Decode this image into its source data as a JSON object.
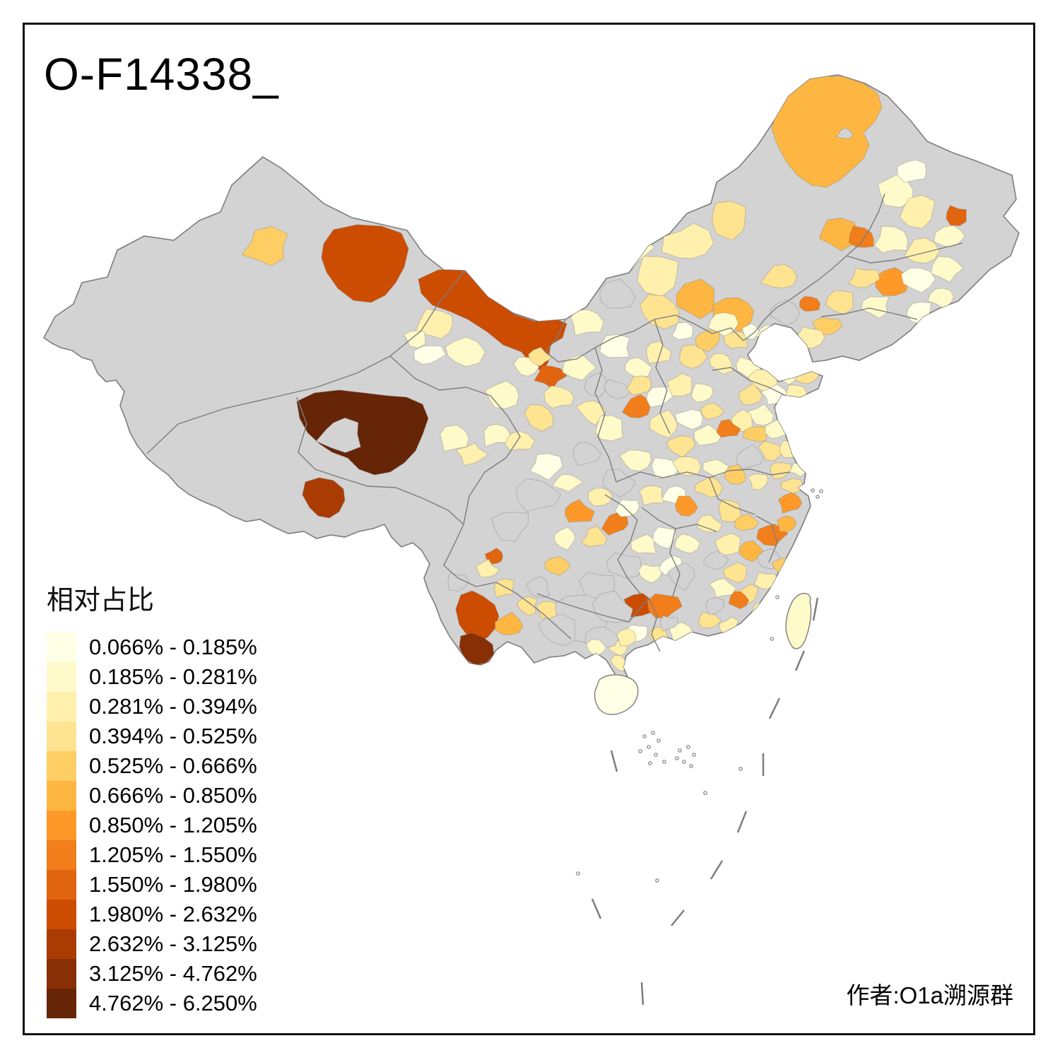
{
  "title": "O-F14338_",
  "attribution": "作者:O1a溯源群",
  "legend": {
    "title": "相对占比",
    "classes": [
      {
        "label": "0.066% - 0.185%",
        "color": "#FFFFE5"
      },
      {
        "label": "0.185% - 0.281%",
        "color": "#FFFACA"
      },
      {
        "label": "0.281% - 0.394%",
        "color": "#FFF0AE"
      },
      {
        "label": "0.394% - 0.525%",
        "color": "#FEE391"
      },
      {
        "label": "0.525% - 0.666%",
        "color": "#FECE65"
      },
      {
        "label": "0.666% - 0.850%",
        "color": "#FEB642"
      },
      {
        "label": "0.850% - 1.205%",
        "color": "#FE9929"
      },
      {
        "label": "1.205% - 1.550%",
        "color": "#F27E1B"
      },
      {
        "label": "1.550% - 1.980%",
        "color": "#E1640E"
      },
      {
        "label": "1.980% - 2.632%",
        "color": "#CC4C02"
      },
      {
        "label": "2.632% - 3.125%",
        "color": "#AA3C03"
      },
      {
        "label": "3.125% - 4.762%",
        "color": "#882F05"
      },
      {
        "label": "4.762% - 6.250%",
        "color": "#662506"
      }
    ]
  },
  "map": {
    "background": "#FFFFFF",
    "no_data_color": "#D3D3D3",
    "boundary_color": "#7D7D7D",
    "islands": {
      "taiwan_class": 2,
      "hainan_class": 1
    },
    "features": [
      {
        "pts": [
          [
            458,
            345
          ],
          [
            472,
            325
          ],
          [
            505,
            318
          ],
          [
            540,
            320
          ],
          [
            568,
            330
          ],
          [
            578,
            352
          ],
          [
            572,
            378
          ],
          [
            560,
            400
          ],
          [
            545,
            418
          ],
          [
            525,
            428
          ],
          [
            500,
            425
          ],
          [
            478,
            408
          ],
          [
            462,
            385
          ],
          [
            455,
            365
          ]
        ],
        "class": 10
      },
      {
        "pts": [
          [
            592,
            395
          ],
          [
            620,
            382
          ],
          [
            648,
            380
          ],
          [
            668,
            390
          ],
          [
            700,
            425
          ],
          [
            728,
            445
          ],
          [
            758,
            455
          ],
          [
            788,
            452
          ],
          [
            802,
            458
          ],
          [
            796,
            478
          ],
          [
            779,
            488
          ],
          [
            776,
            512
          ],
          [
            768,
            526
          ],
          [
            752,
            516
          ],
          [
            738,
            498
          ],
          [
            712,
            488
          ],
          [
            690,
            470
          ],
          [
            662,
            452
          ],
          [
            635,
            440
          ],
          [
            612,
            432
          ],
          [
            596,
            415
          ]
        ],
        "class": 10
      },
      {
        "pts": [
          [
            420,
            568
          ],
          [
            445,
            556
          ],
          [
            480,
            552
          ],
          [
            515,
            556
          ],
          [
            548,
            560
          ],
          [
            575,
            562
          ],
          [
            598,
            572
          ],
          [
            606,
            592
          ],
          [
            598,
            615
          ],
          [
            588,
            638
          ],
          [
            572,
            655
          ],
          [
            552,
            668
          ],
          [
            530,
            672
          ],
          [
            508,
            664
          ],
          [
            492,
            648
          ],
          [
            470,
            640
          ],
          [
            452,
            628
          ],
          [
            435,
            612
          ],
          [
            424,
            592
          ]
        ],
        "class": 13
      },
      {
        "pts": [
          [
            432,
            682
          ],
          [
            452,
            676
          ],
          [
            472,
            680
          ],
          [
            486,
            692
          ],
          [
            488,
            708
          ],
          [
            480,
            724
          ],
          [
            466,
            733
          ],
          [
            450,
            730
          ],
          [
            438,
            718
          ],
          [
            428,
            700
          ]
        ],
        "class": 11
      },
      {
        "pts": [
          [
            652,
            842
          ],
          [
            668,
            836
          ],
          [
            684,
            844
          ],
          [
            700,
            856
          ],
          [
            706,
            872
          ],
          [
            700,
            890
          ],
          [
            690,
            902
          ],
          [
            676,
            908
          ],
          [
            662,
            900
          ],
          [
            650,
            884
          ],
          [
            645,
            862
          ]
        ],
        "class": 10
      },
      {
        "pts": [
          [
            652,
            900
          ],
          [
            668,
            896
          ],
          [
            684,
            902
          ],
          [
            697,
            912
          ],
          [
            699,
            926
          ],
          [
            688,
            938
          ],
          [
            672,
            941
          ],
          [
            658,
            932
          ],
          [
            650,
            916
          ]
        ],
        "class": 12
      },
      {
        "pts": [
          [
            1098,
            162
          ],
          [
            1112,
            132
          ],
          [
            1135,
            115
          ],
          [
            1162,
            108
          ],
          [
            1192,
            108
          ],
          [
            1222,
            118
          ],
          [
            1242,
            132
          ],
          [
            1248,
            152
          ],
          [
            1238,
            172
          ],
          [
            1222,
            188
          ],
          [
            1230,
            205
          ],
          [
            1222,
            225
          ],
          [
            1205,
            240
          ],
          [
            1188,
            255
          ],
          [
            1170,
            265
          ],
          [
            1148,
            262
          ],
          [
            1128,
            248
          ],
          [
            1112,
            228
          ],
          [
            1100,
            205
          ],
          [
            1092,
            182
          ]
        ],
        "class": 6
      },
      [
        483,
        614,
        24,
        0
      ],
      [
        1195,
        190,
        8,
        0
      ],
      [
        378,
        350,
        24,
        5
      ],
      [
        620,
        460,
        22,
        3
      ],
      [
        655,
        498,
        20,
        2
      ],
      [
        607,
        502,
        15,
        1
      ],
      [
        712,
        560,
        18,
        2
      ],
      [
        745,
        520,
        14,
        2
      ],
      [
        588,
        478,
        12,
        2
      ],
      [
        642,
        620,
        17,
        2
      ],
      [
        668,
        643,
        15,
        3
      ],
      [
        700,
        614,
        17,
        2
      ],
      [
        762,
        590,
        18,
        4
      ],
      [
        732,
        624,
        16,
        3
      ],
      [
        778,
        532,
        16,
        9
      ],
      [
        762,
        506,
        13,
        4
      ],
      [
        792,
        562,
        15,
        3
      ],
      [
        820,
        520,
        16,
        2
      ],
      [
        845,
        545,
        15,
        0
      ],
      [
        838,
        582,
        16,
        3
      ],
      [
        862,
        606,
        16,
        2
      ],
      [
        830,
        642,
        18,
        0
      ],
      [
        870,
        492,
        17,
        1
      ],
      [
        900,
        520,
        16,
        2
      ],
      [
        872,
        552,
        14,
        0
      ],
      [
        902,
        577,
        16,
        8
      ],
      [
        905,
        545,
        13,
        4
      ],
      [
        930,
        498,
        15,
        3
      ],
      [
        880,
        350,
        30,
        2
      ],
      [
        930,
        390,
        26,
        3
      ],
      [
        975,
        345,
        26,
        3
      ],
      [
        1030,
        310,
        24,
        4
      ],
      [
        935,
        440,
        22,
        4
      ],
      [
        985,
        425,
        24,
        6
      ],
      [
        1040,
        440,
        24,
        6
      ],
      [
        1105,
        392,
        20,
        4
      ],
      [
        872,
        420,
        20,
        0
      ],
      [
        828,
        455,
        18,
        2
      ],
      [
        1022,
        458,
        15,
        2
      ],
      [
        1043,
        482,
        13,
        4
      ],
      [
        1000,
        482,
        15,
        5
      ],
      [
        1062,
        468,
        11,
        1
      ],
      [
        977,
        505,
        16,
        4
      ],
      [
        1020,
        512,
        15,
        3
      ],
      [
        1058,
        520,
        14,
        2
      ],
      [
        968,
        470,
        13,
        1
      ],
      [
        1268,
        268,
        22,
        2
      ],
      [
        1292,
        242,
        18,
        1
      ],
      [
        1300,
        300,
        20,
        3
      ],
      [
        1355,
        305,
        13,
        9
      ],
      [
        1185,
        330,
        22,
        6
      ],
      [
        1220,
        338,
        17,
        8
      ],
      [
        1262,
        340,
        18,
        2
      ],
      [
        1305,
        355,
        18,
        3
      ],
      [
        1345,
        335,
        17,
        2
      ],
      [
        1262,
        400,
        18,
        7
      ],
      [
        1222,
        395,
        16,
        4
      ],
      [
        1190,
        425,
        16,
        4
      ],
      [
        1240,
        432,
        15,
        2
      ],
      [
        1300,
        395,
        17,
        1
      ],
      [
        1340,
        380,
        16,
        2
      ],
      [
        1146,
        430,
        11,
        8
      ],
      [
        1172,
        462,
        15,
        5
      ],
      [
        1148,
        478,
        14,
        3
      ],
      [
        1130,
        498,
        12,
        4
      ],
      [
        1108,
        442,
        17,
        0
      ],
      [
        1090,
        470,
        13,
        2
      ],
      [
        1300,
        440,
        16,
        1
      ],
      [
        1332,
        420,
        14,
        2
      ],
      [
        1082,
        540,
        16,
        3
      ],
      [
        1112,
        527,
        15,
        2
      ],
      [
        1142,
        532,
        12,
        4
      ],
      [
        1062,
        560,
        14,
        4
      ],
      [
        1096,
        560,
        13,
        1
      ],
      [
        1124,
        556,
        12,
        3
      ],
      [
        1078,
        588,
        14,
        2
      ],
      [
        1110,
        584,
        12,
        4
      ],
      [
        932,
        560,
        16,
        1
      ],
      [
        962,
        545,
        14,
        3
      ],
      [
        994,
        556,
        14,
        2
      ],
      [
        942,
        600,
        16,
        3
      ],
      [
        976,
        592,
        14,
        1
      ],
      [
        1008,
        582,
        13,
        4
      ],
      [
        1000,
        616,
        14,
        2
      ],
      [
        962,
        630,
        14,
        4
      ],
      [
        1048,
        596,
        14,
        3
      ],
      [
        1070,
        614,
        13,
        5
      ],
      [
        1100,
        608,
        13,
        2
      ],
      [
        1029,
        607,
        13,
        8
      ],
      [
        1062,
        648,
        15,
        0
      ],
      [
        1092,
        638,
        13,
        4
      ],
      [
        1118,
        636,
        12,
        3
      ],
      [
        1128,
        616,
        11,
        2
      ],
      [
        1042,
        672,
        13,
        5
      ],
      [
        1012,
        660,
        13,
        2
      ],
      [
        1074,
        680,
        12,
        3
      ],
      [
        1104,
        666,
        12,
        4
      ],
      [
        1130,
        664,
        9,
        2
      ],
      [
        902,
        652,
        17,
        2
      ],
      [
        938,
        664,
        15,
        1
      ],
      [
        972,
        660,
        14,
        3
      ],
      [
        1002,
        690,
        14,
        4
      ],
      [
        872,
        682,
        18,
        0
      ],
      [
        922,
        700,
        15,
        3
      ],
      [
        956,
        702,
        13,
        1
      ],
      [
        772,
        660,
        17,
        1
      ],
      [
        802,
        682,
        15,
        2
      ],
      [
        816,
        724,
        17,
        7
      ],
      [
        850,
        702,
        14,
        3
      ],
      [
        872,
        742,
        14,
        8
      ],
      [
        842,
        762,
        14,
        4
      ],
      [
        800,
        762,
        14,
        2
      ],
      [
        762,
        700,
        22,
        0
      ],
      [
        724,
        742,
        20,
        0
      ],
      [
        788,
        800,
        13,
        5
      ],
      [
        912,
        772,
        14,
        2
      ],
      [
        888,
        718,
        13,
        1
      ],
      [
        700,
        788,
        11,
        9
      ],
      [
        906,
        855,
        17,
        10
      ],
      [
        940,
        858,
        17,
        8
      ],
      [
        846,
        830,
        22,
        0
      ],
      [
        884,
        802,
        18,
        0
      ],
      [
        920,
        812,
        14,
        2
      ],
      [
        950,
        800,
        13,
        1
      ],
      [
        972,
        718,
        15,
        7
      ],
      [
        942,
        760,
        14,
        1
      ],
      [
        974,
        768,
        13,
        2
      ],
      [
        1002,
        742,
        13,
        3
      ],
      [
        966,
        816,
        16,
        0
      ],
      [
        1032,
        722,
        14,
        4
      ],
      [
        1056,
        740,
        13,
        5
      ],
      [
        1032,
        772,
        14,
        3
      ],
      [
        1062,
        780,
        12,
        6
      ],
      [
        1042,
        812,
        13,
        4
      ],
      [
        1012,
        792,
        13,
        0
      ],
      [
        1093,
        755,
        16,
        8
      ],
      [
        1118,
        712,
        13,
        7
      ],
      [
        1120,
        687,
        11,
        4
      ],
      [
        1112,
        740,
        11,
        6
      ],
      [
        1087,
        792,
        13,
        0
      ],
      [
        1106,
        800,
        11,
        5
      ],
      [
        1082,
        822,
        13,
        3
      ],
      [
        1058,
        842,
        13,
        4
      ],
      [
        1045,
        850,
        11,
        8
      ],
      [
        1076,
        864,
        11,
        3
      ],
      [
        1022,
        832,
        13,
        2
      ],
      [
        1002,
        878,
        12,
        4
      ],
      [
        1032,
        886,
        11,
        3
      ],
      [
        962,
        895,
        12,
        2
      ],
      [
        932,
        900,
        12,
        4
      ],
      [
        902,
        896,
        12,
        1
      ],
      [
        876,
        916,
        10,
        3
      ],
      [
        876,
        938,
        10,
        3
      ],
      [
        1012,
        858,
        11,
        0
      ],
      [
        946,
        882,
        10,
        0
      ],
      [
        822,
        872,
        30,
        0
      ],
      [
        864,
        862,
        22,
        0
      ],
      [
        792,
        892,
        20,
        0
      ],
      [
        852,
        902,
        18,
        0
      ],
      [
        845,
        916,
        11,
        2
      ],
      [
        886,
        902,
        11,
        3
      ],
      [
        775,
        862,
        12,
        4
      ],
      [
        720,
        886,
        17,
        6
      ],
      [
        746,
        858,
        12,
        4
      ],
      [
        712,
        832,
        13,
        4
      ],
      [
        762,
        832,
        13,
        0
      ],
      [
        688,
        806,
        12,
        3
      ],
      [
        645,
        822,
        12,
        0
      ]
    ]
  }
}
